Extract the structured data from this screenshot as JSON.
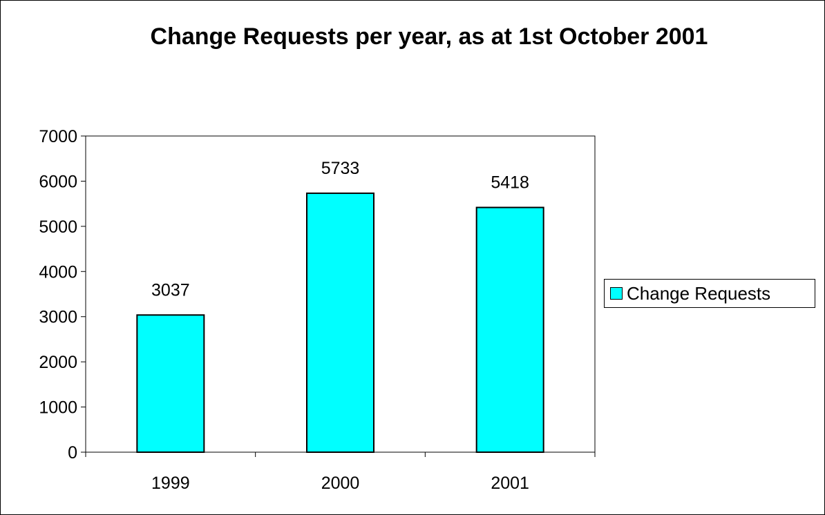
{
  "chart_data": {
    "type": "bar",
    "title": "Change Requests per year, as at 1st October 2001",
    "categories": [
      "1999",
      "2000",
      "2001"
    ],
    "series": [
      {
        "name": "Change Requests",
        "values": [
          3037,
          5733,
          5418
        ],
        "color": "#00FFFF"
      }
    ],
    "data_labels": [
      "3037",
      "5733",
      "5418"
    ],
    "ylim": [
      0,
      7000
    ],
    "yticks": [
      "0",
      "1000",
      "2000",
      "3000",
      "4000",
      "5000",
      "6000",
      "7000"
    ],
    "xlabel": "",
    "ylabel": "",
    "grid": false,
    "legend_position": "right"
  },
  "colors": {
    "bar": "#00FFFF",
    "border": "#000000",
    "background": "#FFFFFF"
  }
}
